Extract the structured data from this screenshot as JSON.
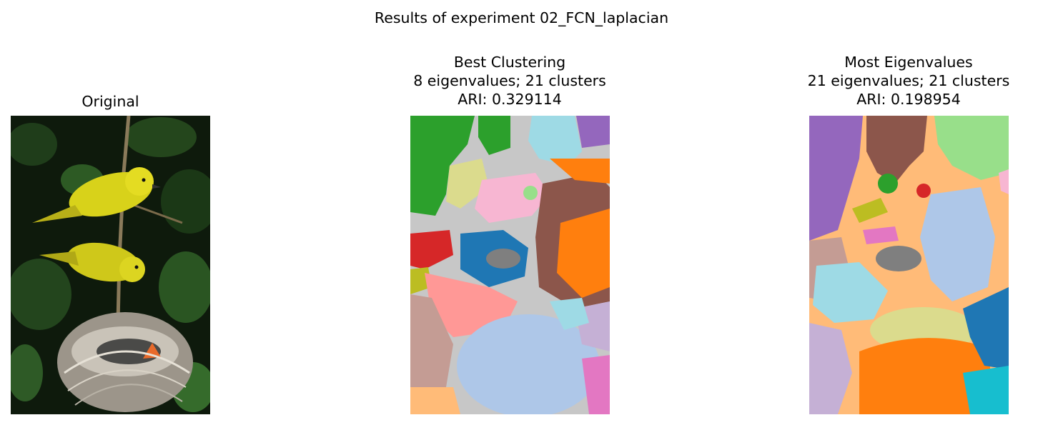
{
  "figure": {
    "suptitle": "Results of experiment 02_FCN_laplacian"
  },
  "panels": [
    {
      "title_lines": [
        "Original"
      ],
      "content": "photo of two yellow warblers perched above a nest"
    },
    {
      "title_lines": [
        "Best Clustering",
        "8 eigenvalues; 21 clusters",
        "ARI: 0.329114"
      ],
      "content": "segmentation map"
    },
    {
      "title_lines": [
        "Most Eigenvalues",
        "21 eigenvalues; 21 clusters",
        "ARI: 0.198954"
      ],
      "content": "segmentation map"
    }
  ],
  "colors": {
    "tab_blue": "#1f77b4",
    "tab_lightblue": "#aec7e8",
    "tab_orange": "#ff7f0e",
    "tab_lightorange": "#ffbb78",
    "tab_green": "#2ca02c",
    "tab_lightgreen": "#98df8a",
    "tab_red": "#d62728",
    "tab_pink": "#ff9896",
    "tab_purple": "#9467bd",
    "tab_lightpurple": "#c5b0d5",
    "tab_brown": "#8c564b",
    "tab_lightbrown": "#c49c94",
    "tab_magenta": "#e377c2",
    "tab_lightmagenta": "#f7b6d2",
    "tab_gray": "#7f7f7f",
    "tab_lightgray": "#c7c7c7",
    "tab_olive": "#bcbd22",
    "tab_lightolive": "#dbdb8d",
    "tab_cyan": "#17becf",
    "tab_lightcyan": "#9edae5"
  }
}
